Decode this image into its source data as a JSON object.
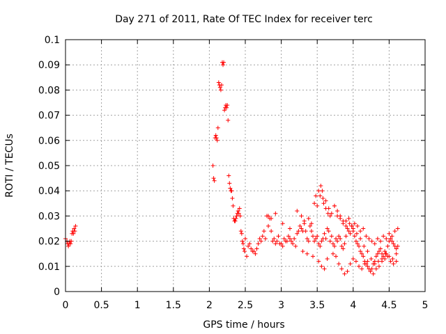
{
  "chart_data": {
    "type": "scatter",
    "title": "Day 271 of 2011, Rate Of TEC Index for receiver terc",
    "xlabel": "GPS time / hours",
    "ylabel": "ROTI / TECUs",
    "xlim": [
      0,
      5
    ],
    "ylim": [
      0,
      0.1
    ],
    "xticks": [
      "0",
      "0.5",
      "1",
      "1.5",
      "2",
      "2.5",
      "3",
      "3.5",
      "4",
      "4.5",
      "5"
    ],
    "yticks": [
      "0",
      "0.01",
      "0.02",
      "0.03",
      "0.04",
      "0.05",
      "0.06",
      "0.07",
      "0.08",
      "0.09",
      "0.1"
    ],
    "grid": true,
    "legend": "none",
    "marker": "+",
    "color": "#ff0000",
    "series": [
      {
        "x": [
          0.0,
          0.02,
          0.03,
          0.04,
          0.05,
          0.06,
          0.07,
          0.08,
          0.09,
          0.1,
          0.11,
          0.12,
          0.13,
          0.14,
          2.05,
          2.06,
          2.07,
          2.08,
          2.09,
          2.1,
          2.11,
          2.12,
          2.13,
          2.14,
          2.15,
          2.16,
          2.17,
          2.18,
          2.19,
          2.2,
          2.21,
          2.22,
          2.23,
          2.24,
          2.25,
          2.26,
          2.27,
          2.28,
          2.29,
          2.3,
          2.31,
          2.32,
          2.33,
          2.34,
          2.35,
          2.36,
          2.37,
          2.38,
          2.39,
          2.4,
          2.41,
          2.42,
          2.43,
          2.44,
          2.45,
          2.46,
          2.47,
          2.48,
          2.49,
          2.5,
          2.52,
          2.54,
          2.56,
          2.58,
          2.6,
          2.62,
          2.64,
          2.66,
          2.68,
          2.7,
          2.72,
          2.74,
          2.76,
          2.78,
          2.8,
          2.82,
          2.84,
          2.86,
          2.88,
          2.9,
          2.92,
          2.94,
          2.96,
          2.98,
          3.0,
          3.02,
          3.04,
          3.06,
          3.08,
          3.1,
          3.12,
          3.14,
          3.16,
          3.18,
          3.2,
          3.22,
          3.24,
          3.26,
          3.28,
          3.3,
          3.32,
          3.34,
          3.36,
          3.38,
          3.4,
          3.42,
          3.44,
          3.46,
          3.48,
          3.5,
          3.52,
          3.54,
          3.56,
          3.58,
          3.6,
          3.62,
          3.64,
          3.66,
          3.68,
          3.7,
          3.72,
          3.74,
          3.76,
          3.78,
          3.8,
          3.82,
          3.84,
          3.86,
          3.88,
          3.9,
          3.92,
          3.94,
          3.96,
          3.98,
          4.0,
          4.02,
          4.04,
          4.06,
          4.08,
          4.1,
          4.12,
          4.14,
          4.16,
          4.18,
          4.2,
          4.22,
          4.24,
          4.26,
          4.28,
          4.3,
          4.32,
          4.34,
          4.36,
          4.38,
          4.4,
          4.42,
          4.44,
          4.46,
          4.48,
          4.5,
          4.52,
          4.54,
          4.56,
          4.58,
          4.6,
          4.62,
          2.82,
          2.86,
          2.92,
          3.02,
          3.12,
          3.22,
          3.28,
          3.32,
          3.38,
          3.42,
          3.46,
          3.5,
          3.54,
          3.58,
          3.62,
          3.66,
          3.7,
          3.74,
          3.78,
          3.82,
          3.86,
          3.9,
          3.94,
          3.98,
          4.02,
          4.06,
          4.1,
          4.14,
          4.18,
          4.22,
          4.26,
          4.3,
          4.34,
          4.38,
          4.42,
          4.46,
          4.5,
          4.54,
          4.58,
          4.62,
          3.3,
          3.36,
          3.44,
          3.52,
          3.56,
          3.6,
          3.64,
          3.72,
          3.76,
          3.8,
          3.84,
          3.88,
          3.92,
          3.96,
          4.0,
          4.04,
          4.08,
          4.12,
          4.16,
          4.2,
          4.24,
          4.28,
          4.32,
          4.36,
          4.4,
          4.44,
          4.48,
          4.52,
          4.56,
          4.6,
          3.48,
          3.52,
          3.55,
          3.57,
          3.59,
          3.62,
          3.65,
          3.68,
          3.74,
          3.78,
          3.82,
          3.86,
          3.9,
          3.95,
          4.0,
          4.05,
          4.1,
          4.15,
          4.2,
          4.25,
          4.3,
          4.35,
          4.4,
          4.45,
          4.5,
          4.55,
          4.6
        ],
        "y": [
          0.021,
          0.02,
          0.019,
          0.018,
          0.019,
          0.02,
          0.019,
          0.02,
          0.023,
          0.024,
          0.023,
          0.025,
          0.024,
          0.026,
          0.05,
          0.045,
          0.044,
          0.061,
          0.062,
          0.061,
          0.06,
          0.065,
          0.083,
          0.082,
          0.081,
          0.08,
          0.082,
          0.091,
          0.09,
          0.091,
          0.072,
          0.073,
          0.074,
          0.073,
          0.074,
          0.068,
          0.046,
          0.043,
          0.041,
          0.04,
          0.04,
          0.037,
          0.034,
          0.029,
          0.028,
          0.028,
          0.029,
          0.03,
          0.031,
          0.032,
          0.031,
          0.033,
          0.03,
          0.024,
          0.023,
          0.02,
          0.019,
          0.017,
          0.016,
          0.021,
          0.014,
          0.018,
          0.019,
          0.017,
          0.016,
          0.016,
          0.015,
          0.017,
          0.019,
          0.021,
          0.02,
          0.022,
          0.024,
          0.021,
          0.03,
          0.026,
          0.029,
          0.024,
          0.02,
          0.021,
          0.019,
          0.02,
          0.022,
          0.019,
          0.019,
          0.018,
          0.021,
          0.02,
          0.02,
          0.022,
          0.021,
          0.02,
          0.019,
          0.021,
          0.018,
          0.023,
          0.024,
          0.026,
          0.025,
          0.024,
          0.027,
          0.024,
          0.021,
          0.02,
          0.026,
          0.024,
          0.022,
          0.02,
          0.021,
          0.022,
          0.019,
          0.018,
          0.02,
          0.021,
          0.023,
          0.021,
          0.025,
          0.024,
          0.02,
          0.022,
          0.019,
          0.018,
          0.021,
          0.02,
          0.022,
          0.021,
          0.018,
          0.017,
          0.019,
          0.022,
          0.025,
          0.024,
          0.023,
          0.026,
          0.024,
          0.022,
          0.02,
          0.019,
          0.018,
          0.016,
          0.015,
          0.014,
          0.012,
          0.011,
          0.01,
          0.009,
          0.008,
          0.009,
          0.011,
          0.012,
          0.014,
          0.015,
          0.016,
          0.017,
          0.015,
          0.014,
          0.016,
          0.015,
          0.018,
          0.02,
          0.021,
          0.02,
          0.019,
          0.018,
          0.017,
          0.018,
          0.03,
          0.029,
          0.031,
          0.027,
          0.025,
          0.032,
          0.03,
          0.028,
          0.029,
          0.027,
          0.035,
          0.034,
          0.038,
          0.037,
          0.036,
          0.033,
          0.031,
          0.034,
          0.03,
          0.029,
          0.027,
          0.028,
          0.029,
          0.026,
          0.027,
          0.026,
          0.024,
          0.025,
          0.022,
          0.021,
          0.02,
          0.019,
          0.021,
          0.02,
          0.022,
          0.021,
          0.023,
          0.022,
          0.024,
          0.025,
          0.016,
          0.015,
          0.014,
          0.012,
          0.01,
          0.009,
          0.013,
          0.015,
          0.014,
          0.011,
          0.009,
          0.007,
          0.008,
          0.011,
          0.013,
          0.012,
          0.01,
          0.009,
          0.011,
          0.012,
          0.008,
          0.007,
          0.009,
          0.01,
          0.012,
          0.013,
          0.014,
          0.012,
          0.011,
          0.015,
          0.038,
          0.04,
          0.042,
          0.04,
          0.035,
          0.033,
          0.031,
          0.03,
          0.034,
          0.032,
          0.03,
          0.028,
          0.026,
          0.027,
          0.025,
          0.023,
          0.021,
          0.018,
          0.016,
          0.013,
          0.011,
          0.012,
          0.013,
          0.015,
          0.014,
          0.013,
          0.012
        ]
      }
    ]
  }
}
